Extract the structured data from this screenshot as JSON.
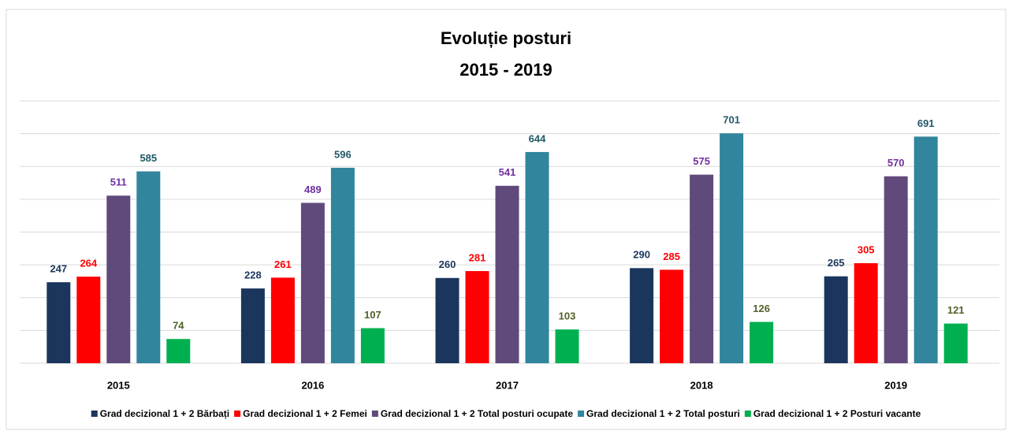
{
  "chart_data": {
    "type": "bar",
    "title": "Evoluție posturi",
    "subtitle": "2015 - 2019",
    "categories": [
      "2015",
      "2016",
      "2017",
      "2018",
      "2019"
    ],
    "series": [
      {
        "name": "Grad decizional 1 + 2 Bărbați",
        "color": "#1b365d",
        "label_color": "#1b365d",
        "values": [
          247,
          228,
          260,
          290,
          265
        ]
      },
      {
        "name": "Grad decizional 1 + 2 Femei",
        "color": "#ff0000",
        "label_color": "#ff0000",
        "values": [
          264,
          261,
          281,
          285,
          305
        ]
      },
      {
        "name": "Grad decizional 1 + 2 Total posturi ocupate",
        "color": "#604a7b",
        "label_color": "#7030a0",
        "values": [
          511,
          489,
          541,
          575,
          570
        ]
      },
      {
        "name": "Grad decizional 1 + 2 Total posturi",
        "color": "#31859c",
        "label_color": "#215967",
        "values": [
          585,
          596,
          644,
          701,
          691
        ]
      },
      {
        "name": "Grad decizional 1 + 2 Posturi vacante",
        "color": "#00b050",
        "label_color": "#4f6228",
        "values": [
          74,
          107,
          103,
          126,
          121
        ]
      }
    ],
    "ylim": [
      0,
      800
    ],
    "yticks": [
      0,
      100,
      200,
      300,
      400,
      500,
      600,
      700,
      800
    ],
    "grid": true,
    "legend": "bottom"
  }
}
